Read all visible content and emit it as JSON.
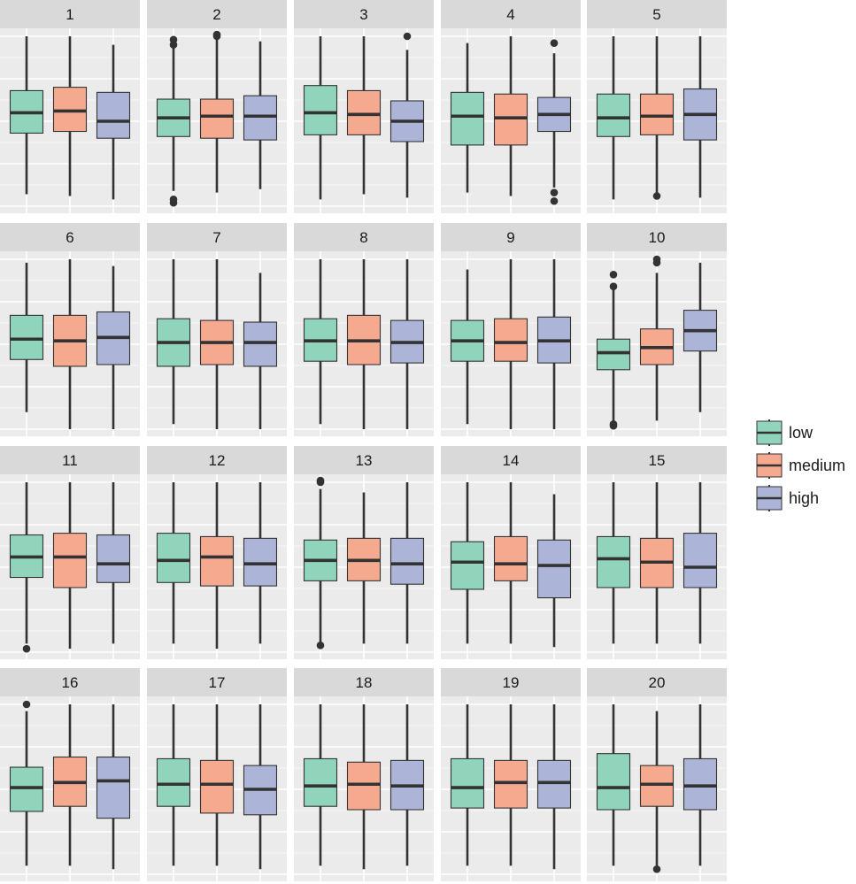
{
  "colors": {
    "low": "#91d4bc",
    "medium": "#f5aa8f",
    "high": "#acb5d8",
    "panel_bg": "#ebebeb",
    "strip_bg": "#d9d9d9",
    "grid": "#ffffff",
    "line": "#333333"
  },
  "chart_data": {
    "type": "box",
    "facets": [
      "1",
      "2",
      "3",
      "4",
      "5",
      "6",
      "7",
      "8",
      "9",
      "10",
      "11",
      "12",
      "13",
      "14",
      "15",
      "16",
      "17",
      "18",
      "19",
      "20"
    ],
    "groups": [
      "low",
      "medium",
      "high"
    ],
    "ylim": [
      0,
      100
    ],
    "grid": true,
    "legend": {
      "position": "right",
      "entries": [
        "low",
        "medium",
        "high"
      ]
    },
    "panels": [
      {
        "label": "1",
        "boxes": [
          {
            "group": "low",
            "whisker_low": 7,
            "q1": 43,
            "median": 55,
            "q3": 68,
            "whisker_high": 100,
            "outliers": []
          },
          {
            "group": "medium",
            "whisker_low": 6,
            "q1": 44,
            "median": 56,
            "q3": 70,
            "whisker_high": 100,
            "outliers": []
          },
          {
            "group": "high",
            "whisker_low": 4,
            "q1": 40,
            "median": 50,
            "q3": 67,
            "whisker_high": 95,
            "outliers": []
          }
        ]
      },
      {
        "label": "2",
        "boxes": [
          {
            "group": "low",
            "whisker_low": 9,
            "q1": 41,
            "median": 52,
            "q3": 63,
            "whisker_high": 95,
            "outliers": [
              2,
              4,
              95,
              98
            ]
          },
          {
            "group": "medium",
            "whisker_low": 8,
            "q1": 40,
            "median": 53,
            "q3": 63,
            "whisker_high": 98,
            "outliers": [
              100,
              101
            ]
          },
          {
            "group": "high",
            "whisker_low": 10,
            "q1": 39,
            "median": 53,
            "q3": 65,
            "whisker_high": 97,
            "outliers": []
          }
        ]
      },
      {
        "label": "3",
        "boxes": [
          {
            "group": "low",
            "whisker_low": 4,
            "q1": 42,
            "median": 55,
            "q3": 71,
            "whisker_high": 100,
            "outliers": []
          },
          {
            "group": "medium",
            "whisker_low": 7,
            "q1": 42,
            "median": 54,
            "q3": 68,
            "whisker_high": 100,
            "outliers": []
          },
          {
            "group": "high",
            "whisker_low": 5,
            "q1": 38,
            "median": 50,
            "q3": 62,
            "whisker_high": 92,
            "outliers": [
              100
            ]
          }
        ]
      },
      {
        "label": "4",
        "boxes": [
          {
            "group": "low",
            "whisker_low": 8,
            "q1": 36,
            "median": 53,
            "q3": 67,
            "whisker_high": 96,
            "outliers": []
          },
          {
            "group": "medium",
            "whisker_low": 6,
            "q1": 36,
            "median": 52,
            "q3": 66,
            "whisker_high": 100,
            "outliers": []
          },
          {
            "group": "high",
            "whisker_low": 11,
            "q1": 44,
            "median": 54,
            "q3": 64,
            "whisker_high": 90,
            "outliers": [
              3,
              8,
              96
            ]
          }
        ]
      },
      {
        "label": "5",
        "boxes": [
          {
            "group": "low",
            "whisker_low": 4,
            "q1": 41,
            "median": 52,
            "q3": 66,
            "whisker_high": 100,
            "outliers": []
          },
          {
            "group": "medium",
            "whisker_low": 8,
            "q1": 42,
            "median": 53,
            "q3": 66,
            "whisker_high": 100,
            "outliers": [
              6
            ]
          },
          {
            "group": "high",
            "whisker_low": 5,
            "q1": 39,
            "median": 54,
            "q3": 69,
            "whisker_high": 100,
            "outliers": []
          }
        ]
      },
      {
        "label": "6",
        "boxes": [
          {
            "group": "low",
            "whisker_low": 10,
            "q1": 41,
            "median": 53,
            "q3": 67,
            "whisker_high": 98,
            "outliers": []
          },
          {
            "group": "medium",
            "whisker_low": 0,
            "q1": 37,
            "median": 52,
            "q3": 67,
            "whisker_high": 100,
            "outliers": []
          },
          {
            "group": "high",
            "whisker_low": 0,
            "q1": 38,
            "median": 54,
            "q3": 69,
            "whisker_high": 96,
            "outliers": []
          }
        ]
      },
      {
        "label": "7",
        "boxes": [
          {
            "group": "low",
            "whisker_low": 3,
            "q1": 37,
            "median": 51,
            "q3": 65,
            "whisker_high": 100,
            "outliers": []
          },
          {
            "group": "medium",
            "whisker_low": 0,
            "q1": 38,
            "median": 51,
            "q3": 64,
            "whisker_high": 100,
            "outliers": []
          },
          {
            "group": "high",
            "whisker_low": 0,
            "q1": 37,
            "median": 51,
            "q3": 63,
            "whisker_high": 92,
            "outliers": []
          }
        ]
      },
      {
        "label": "8",
        "boxes": [
          {
            "group": "low",
            "whisker_low": 3,
            "q1": 40,
            "median": 52,
            "q3": 65,
            "whisker_high": 100,
            "outliers": []
          },
          {
            "group": "medium",
            "whisker_low": 0,
            "q1": 38,
            "median": 52,
            "q3": 67,
            "whisker_high": 100,
            "outliers": []
          },
          {
            "group": "high",
            "whisker_low": 0,
            "q1": 39,
            "median": 51,
            "q3": 64,
            "whisker_high": 100,
            "outliers": []
          }
        ]
      },
      {
        "label": "9",
        "boxes": [
          {
            "group": "low",
            "whisker_low": 3,
            "q1": 40,
            "median": 52,
            "q3": 64,
            "whisker_high": 94,
            "outliers": []
          },
          {
            "group": "medium",
            "whisker_low": 0,
            "q1": 40,
            "median": 51,
            "q3": 65,
            "whisker_high": 100,
            "outliers": []
          },
          {
            "group": "high",
            "whisker_low": 0,
            "q1": 39,
            "median": 52,
            "q3": 66,
            "whisker_high": 100,
            "outliers": []
          }
        ]
      },
      {
        "label": "10",
        "boxes": [
          {
            "group": "low",
            "whisker_low": 3,
            "q1": 35,
            "median": 45,
            "q3": 53,
            "whisker_high": 82,
            "outliers": [
              2,
              3,
              84,
              91
            ]
          },
          {
            "group": "medium",
            "whisker_low": 5,
            "q1": 38,
            "median": 48,
            "q3": 59,
            "whisker_high": 92,
            "outliers": [
              98,
              100
            ]
          },
          {
            "group": "high",
            "whisker_low": 10,
            "q1": 46,
            "median": 58,
            "q3": 70,
            "whisker_high": 98,
            "outliers": []
          }
        ]
      },
      {
        "label": "11",
        "boxes": [
          {
            "group": "low",
            "whisker_low": 5,
            "q1": 44,
            "median": 56,
            "q3": 69,
            "whisker_high": 100,
            "outliers": [
              2
            ]
          },
          {
            "group": "medium",
            "whisker_low": 2,
            "q1": 38,
            "median": 56,
            "q3": 70,
            "whisker_high": 100,
            "outliers": []
          },
          {
            "group": "high",
            "whisker_low": 5,
            "q1": 41,
            "median": 52,
            "q3": 69,
            "whisker_high": 100,
            "outliers": []
          }
        ]
      },
      {
        "label": "12",
        "boxes": [
          {
            "group": "low",
            "whisker_low": 5,
            "q1": 41,
            "median": 54,
            "q3": 70,
            "whisker_high": 100,
            "outliers": []
          },
          {
            "group": "medium",
            "whisker_low": 2,
            "q1": 39,
            "median": 56,
            "q3": 68,
            "whisker_high": 100,
            "outliers": []
          },
          {
            "group": "high",
            "whisker_low": 5,
            "q1": 39,
            "median": 52,
            "q3": 67,
            "whisker_high": 100,
            "outliers": []
          }
        ]
      },
      {
        "label": "13",
        "boxes": [
          {
            "group": "low",
            "whisker_low": 5,
            "q1": 42,
            "median": 54,
            "q3": 66,
            "whisker_high": 96,
            "outliers": [
              4,
              100,
              101
            ]
          },
          {
            "group": "medium",
            "whisker_low": 5,
            "q1": 42,
            "median": 54,
            "q3": 67,
            "whisker_high": 94,
            "outliers": []
          },
          {
            "group": "high",
            "whisker_low": 5,
            "q1": 40,
            "median": 52,
            "q3": 67,
            "whisker_high": 100,
            "outliers": []
          }
        ]
      },
      {
        "label": "14",
        "boxes": [
          {
            "group": "low",
            "whisker_low": 5,
            "q1": 37,
            "median": 53,
            "q3": 65,
            "whisker_high": 100,
            "outliers": []
          },
          {
            "group": "medium",
            "whisker_low": 5,
            "q1": 42,
            "median": 52,
            "q3": 68,
            "whisker_high": 100,
            "outliers": []
          },
          {
            "group": "high",
            "whisker_low": 3,
            "q1": 32,
            "median": 51,
            "q3": 66,
            "whisker_high": 93,
            "outliers": []
          }
        ]
      },
      {
        "label": "15",
        "boxes": [
          {
            "group": "low",
            "whisker_low": 5,
            "q1": 38,
            "median": 55,
            "q3": 68,
            "whisker_high": 100,
            "outliers": []
          },
          {
            "group": "medium",
            "whisker_low": 5,
            "q1": 38,
            "median": 53,
            "q3": 67,
            "whisker_high": 100,
            "outliers": []
          },
          {
            "group": "high",
            "whisker_low": 5,
            "q1": 38,
            "median": 50,
            "q3": 70,
            "whisker_high": 100,
            "outliers": []
          }
        ]
      },
      {
        "label": "16",
        "boxes": [
          {
            "group": "low",
            "whisker_low": 5,
            "q1": 37,
            "median": 51,
            "q3": 63,
            "whisker_high": 96,
            "outliers": [
              100
            ]
          },
          {
            "group": "medium",
            "whisker_low": 5,
            "q1": 40,
            "median": 54,
            "q3": 69,
            "whisker_high": 100,
            "outliers": []
          },
          {
            "group": "high",
            "whisker_low": 3,
            "q1": 33,
            "median": 55,
            "q3": 69,
            "whisker_high": 100,
            "outliers": []
          }
        ]
      },
      {
        "label": "17",
        "boxes": [
          {
            "group": "low",
            "whisker_low": 5,
            "q1": 40,
            "median": 53,
            "q3": 68,
            "whisker_high": 100,
            "outliers": []
          },
          {
            "group": "medium",
            "whisker_low": 5,
            "q1": 36,
            "median": 53,
            "q3": 67,
            "whisker_high": 100,
            "outliers": []
          },
          {
            "group": "high",
            "whisker_low": 3,
            "q1": 35,
            "median": 50,
            "q3": 64,
            "whisker_high": 100,
            "outliers": []
          }
        ]
      },
      {
        "label": "18",
        "boxes": [
          {
            "group": "low",
            "whisker_low": 5,
            "q1": 40,
            "median": 52,
            "q3": 68,
            "whisker_high": 100,
            "outliers": []
          },
          {
            "group": "medium",
            "whisker_low": 3,
            "q1": 38,
            "median": 53,
            "q3": 66,
            "whisker_high": 100,
            "outliers": []
          },
          {
            "group": "high",
            "whisker_low": 5,
            "q1": 38,
            "median": 52,
            "q3": 67,
            "whisker_high": 100,
            "outliers": []
          }
        ]
      },
      {
        "label": "19",
        "boxes": [
          {
            "group": "low",
            "whisker_low": 5,
            "q1": 39,
            "median": 51,
            "q3": 68,
            "whisker_high": 100,
            "outliers": []
          },
          {
            "group": "medium",
            "whisker_low": 5,
            "q1": 39,
            "median": 54,
            "q3": 67,
            "whisker_high": 100,
            "outliers": []
          },
          {
            "group": "high",
            "whisker_low": 3,
            "q1": 39,
            "median": 54,
            "q3": 67,
            "whisker_high": 100,
            "outliers": []
          }
        ]
      },
      {
        "label": "20",
        "boxes": [
          {
            "group": "low",
            "whisker_low": 5,
            "q1": 38,
            "median": 51,
            "q3": 71,
            "whisker_high": 100,
            "outliers": []
          },
          {
            "group": "medium",
            "whisker_low": 5,
            "q1": 40,
            "median": 53,
            "q3": 64,
            "whisker_high": 96,
            "outliers": [
              3
            ]
          },
          {
            "group": "high",
            "whisker_low": 5,
            "q1": 38,
            "median": 52,
            "q3": 68,
            "whisker_high": 100,
            "outliers": []
          }
        ]
      }
    ]
  }
}
